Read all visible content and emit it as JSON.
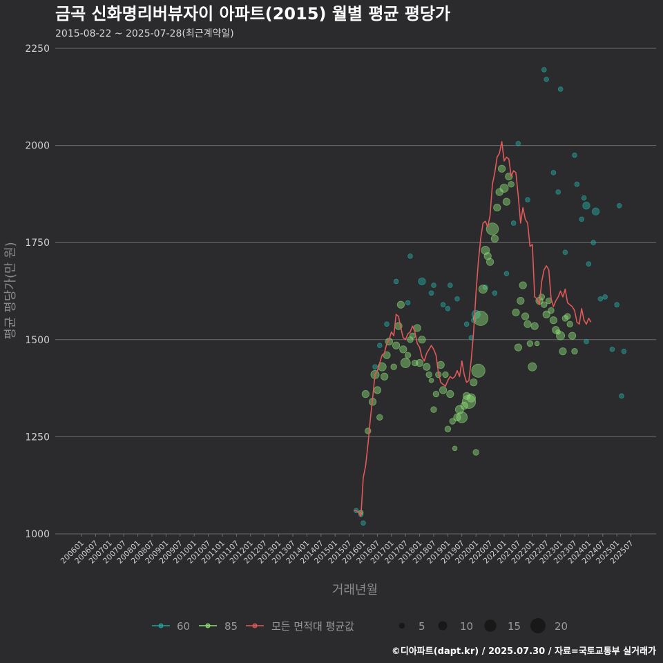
{
  "chart_data": {
    "type": "scatter",
    "title": "금곡 신화명리버뷰자이 아파트(2015) 월별 평균 평당가",
    "subtitle": "2015-08-22 ~ 2025-07-28(최근계약일)",
    "xlabel": "거래년월",
    "ylabel": "평균 평당가(만 원)",
    "ylim": [
      1000,
      2250
    ],
    "yticks": [
      1000,
      1250,
      1500,
      1750,
      2000,
      2250
    ],
    "categories": [
      "200601",
      "200607",
      "200701",
      "200707",
      "200801",
      "200807",
      "200901",
      "200907",
      "201001",
      "201007",
      "201101",
      "201107",
      "201201",
      "201207",
      "201301",
      "201307",
      "201401",
      "201407",
      "201501",
      "201507",
      "201601",
      "201607",
      "201701",
      "201707",
      "201801",
      "201807",
      "201901",
      "201907",
      "202001",
      "202007",
      "202101",
      "202107",
      "202201",
      "202207",
      "202301",
      "202307",
      "202401",
      "202407",
      "202501",
      "202507"
    ],
    "x_range_months": [
      0,
      234
    ],
    "colors": {
      "s60": "#26a39c",
      "s85": "#8fe07a",
      "avg": "#e05a5a",
      "size_legend": "#151515"
    },
    "legend": {
      "series": [
        {
          "key": "s60",
          "label": "60"
        },
        {
          "key": "s85",
          "label": "85"
        },
        {
          "key": "avg",
          "label": "모든 면적대 평균값"
        }
      ],
      "sizes": [
        {
          "value": 5,
          "label": "5"
        },
        {
          "value": 10,
          "label": "10"
        },
        {
          "value": 15,
          "label": "15"
        },
        {
          "value": 20,
          "label": "20"
        }
      ]
    },
    "series": [
      {
        "name": "60",
        "points": [
          [
            117,
            1060,
            1
          ],
          [
            119,
            1050,
            1
          ],
          [
            120,
            1028,
            1
          ],
          [
            125,
            1430,
            1
          ],
          [
            127,
            1485,
            1
          ],
          [
            130,
            1540,
            1
          ],
          [
            134,
            1650,
            1
          ],
          [
            139,
            1595,
            1
          ],
          [
            140,
            1715,
            1
          ],
          [
            145,
            1650,
            3
          ],
          [
            149,
            1620,
            1
          ],
          [
            150,
            1640,
            1
          ],
          [
            154,
            1590,
            1
          ],
          [
            156,
            1580,
            1
          ],
          [
            157,
            1640,
            1
          ],
          [
            160,
            1605,
            1
          ],
          [
            164,
            1540,
            1
          ],
          [
            166,
            1505,
            1
          ],
          [
            167,
            1550,
            1
          ],
          [
            168,
            1565,
            4
          ],
          [
            172,
            1635,
            1
          ],
          [
            176,
            1620,
            1
          ],
          [
            181,
            1670,
            1
          ],
          [
            184,
            1800,
            1
          ],
          [
            186,
            2005,
            1
          ],
          [
            190,
            1860,
            1
          ],
          [
            197,
            2195,
            1
          ],
          [
            198,
            2170,
            1
          ],
          [
            201,
            1930,
            1
          ],
          [
            203,
            1880,
            1
          ],
          [
            204,
            2145,
            1
          ],
          [
            206,
            1725,
            1
          ],
          [
            210,
            1975,
            1
          ],
          [
            211,
            1900,
            1
          ],
          [
            213,
            1810,
            1
          ],
          [
            214,
            1865,
            1
          ],
          [
            215,
            1845,
            3
          ],
          [
            216,
            1695,
            1
          ],
          [
            218,
            1750,
            1
          ],
          [
            219,
            1830,
            3
          ],
          [
            221,
            1605,
            1
          ],
          [
            223,
            1610,
            1
          ],
          [
            228,
            1590,
            1
          ],
          [
            229,
            1845,
            1
          ],
          [
            231,
            1470,
            1
          ],
          [
            230,
            1355,
            1
          ],
          [
            226,
            1475,
            1
          ],
          [
            215,
            1495,
            1
          ]
        ]
      },
      {
        "name": "85",
        "points": [
          [
            119,
            1055,
            1
          ],
          [
            121,
            1360,
            3
          ],
          [
            122,
            1265,
            2
          ],
          [
            124,
            1340,
            3
          ],
          [
            125,
            1410,
            4
          ],
          [
            126,
            1370,
            3
          ],
          [
            127,
            1300,
            2
          ],
          [
            128,
            1430,
            4
          ],
          [
            129,
            1405,
            3
          ],
          [
            130,
            1460,
            3
          ],
          [
            131,
            1495,
            3
          ],
          [
            133,
            1430,
            2
          ],
          [
            134,
            1485,
            3
          ],
          [
            135,
            1535,
            3
          ],
          [
            136,
            1590,
            3
          ],
          [
            137,
            1475,
            3
          ],
          [
            138,
            1440,
            5
          ],
          [
            139,
            1460,
            2
          ],
          [
            140,
            1500,
            2
          ],
          [
            141,
            1510,
            2
          ],
          [
            142,
            1440,
            2
          ],
          [
            143,
            1530,
            3
          ],
          [
            144,
            1440,
            3
          ],
          [
            145,
            1500,
            3
          ],
          [
            147,
            1430,
            3
          ],
          [
            148,
            1410,
            2
          ],
          [
            149,
            1395,
            1
          ],
          [
            150,
            1320,
            2
          ],
          [
            151,
            1360,
            2
          ],
          [
            152,
            1410,
            2
          ],
          [
            153,
            1435,
            3
          ],
          [
            154,
            1370,
            3
          ],
          [
            155,
            1410,
            2
          ],
          [
            156,
            1270,
            2
          ],
          [
            157,
            1360,
            3
          ],
          [
            158,
            1290,
            2
          ],
          [
            159,
            1220,
            1
          ],
          [
            160,
            1300,
            3
          ],
          [
            161,
            1320,
            4
          ],
          [
            162,
            1300,
            6
          ],
          [
            163,
            1330,
            3
          ],
          [
            164,
            1355,
            3
          ],
          [
            165,
            1340,
            8
          ],
          [
            166,
            1350,
            4
          ],
          [
            167,
            1390,
            3
          ],
          [
            168,
            1210,
            2
          ],
          [
            169,
            1420,
            8
          ],
          [
            170,
            1555,
            9
          ],
          [
            171,
            1630,
            4
          ],
          [
            172,
            1730,
            4
          ],
          [
            173,
            1715,
            3
          ],
          [
            174,
            1700,
            3
          ],
          [
            175,
            1785,
            7
          ],
          [
            176,
            1760,
            3
          ],
          [
            177,
            1840,
            3
          ],
          [
            178,
            1880,
            3
          ],
          [
            179,
            1940,
            3
          ],
          [
            180,
            1890,
            4
          ],
          [
            181,
            1855,
            3
          ],
          [
            182,
            1920,
            3
          ],
          [
            183,
            1900,
            2
          ],
          [
            185,
            1570,
            3
          ],
          [
            186,
            1480,
            3
          ],
          [
            187,
            1600,
            3
          ],
          [
            188,
            1640,
            3
          ],
          [
            189,
            1560,
            3
          ],
          [
            190,
            1540,
            3
          ],
          [
            191,
            1490,
            2
          ],
          [
            192,
            1430,
            4
          ],
          [
            193,
            1535,
            3
          ],
          [
            194,
            1490,
            1
          ],
          [
            195,
            1600,
            3
          ],
          [
            196,
            1610,
            2
          ],
          [
            197,
            1590,
            2
          ],
          [
            198,
            1565,
            3
          ],
          [
            199,
            1600,
            2
          ],
          [
            200,
            1575,
            2
          ],
          [
            201,
            1550,
            3
          ],
          [
            202,
            1525,
            3
          ],
          [
            203,
            1520,
            1
          ],
          [
            204,
            1510,
            4
          ],
          [
            205,
            1470,
            3
          ],
          [
            206,
            1555,
            2
          ],
          [
            207,
            1560,
            2
          ],
          [
            208,
            1540,
            2
          ],
          [
            209,
            1510,
            3
          ],
          [
            210,
            1470,
            2
          ]
        ]
      },
      {
        "name": "모든 면적대 평균값",
        "points": [
          [
            116,
            1060
          ],
          [
            117,
            1060
          ],
          [
            118,
            1055
          ],
          [
            119,
            1045
          ],
          [
            120,
            1145
          ],
          [
            121,
            1175
          ],
          [
            122,
            1230
          ],
          [
            123,
            1295
          ],
          [
            124,
            1350
          ],
          [
            125,
            1410
          ],
          [
            126,
            1420
          ],
          [
            127,
            1440
          ],
          [
            128,
            1460
          ],
          [
            129,
            1465
          ],
          [
            130,
            1490
          ],
          [
            131,
            1500
          ],
          [
            132,
            1520
          ],
          [
            133,
            1510
          ],
          [
            134,
            1565
          ],
          [
            135,
            1560
          ],
          [
            136,
            1530
          ],
          [
            137,
            1505
          ],
          [
            138,
            1500
          ],
          [
            139,
            1515
          ],
          [
            140,
            1520
          ],
          [
            141,
            1535
          ],
          [
            142,
            1520
          ],
          [
            143,
            1490
          ],
          [
            144,
            1480
          ],
          [
            145,
            1455
          ],
          [
            146,
            1445
          ],
          [
            147,
            1465
          ],
          [
            148,
            1475
          ],
          [
            149,
            1485
          ],
          [
            150,
            1475
          ],
          [
            151,
            1460
          ],
          [
            152,
            1415
          ],
          [
            153,
            1390
          ],
          [
            154,
            1385
          ],
          [
            155,
            1380
          ],
          [
            156,
            1395
          ],
          [
            157,
            1405
          ],
          [
            158,
            1400
          ],
          [
            159,
            1405
          ],
          [
            160,
            1420
          ],
          [
            161,
            1405
          ],
          [
            162,
            1445
          ],
          [
            163,
            1410
          ],
          [
            164,
            1390
          ],
          [
            165,
            1395
          ],
          [
            166,
            1450
          ],
          [
            167,
            1520
          ],
          [
            168,
            1620
          ],
          [
            169,
            1700
          ],
          [
            170,
            1760
          ],
          [
            171,
            1800
          ],
          [
            172,
            1805
          ],
          [
            173,
            1790
          ],
          [
            174,
            1820
          ],
          [
            175,
            1900
          ],
          [
            176,
            1930
          ],
          [
            177,
            1970
          ],
          [
            178,
            1980
          ],
          [
            179,
            2010
          ],
          [
            180,
            1960
          ],
          [
            181,
            1970
          ],
          [
            182,
            1965
          ],
          [
            183,
            1920
          ],
          [
            184,
            1935
          ],
          [
            185,
            1930
          ],
          [
            186,
            1870
          ],
          [
            187,
            1800
          ],
          [
            188,
            1840
          ],
          [
            189,
            1810
          ],
          [
            190,
            1800
          ],
          [
            191,
            1740
          ],
          [
            192,
            1745
          ],
          [
            193,
            1610
          ],
          [
            194,
            1605
          ],
          [
            195,
            1590
          ],
          [
            196,
            1650
          ],
          [
            197,
            1680
          ],
          [
            198,
            1690
          ],
          [
            199,
            1680
          ],
          [
            200,
            1605
          ],
          [
            201,
            1585
          ],
          [
            202,
            1600
          ],
          [
            203,
            1610
          ],
          [
            204,
            1625
          ],
          [
            205,
            1610
          ],
          [
            206,
            1630
          ],
          [
            207,
            1595
          ],
          [
            208,
            1590
          ],
          [
            209,
            1585
          ],
          [
            210,
            1575
          ],
          [
            211,
            1545
          ],
          [
            212,
            1540
          ],
          [
            213,
            1580
          ],
          [
            214,
            1550
          ],
          [
            215,
            1540
          ],
          [
            216,
            1555
          ],
          [
            217,
            1545
          ]
        ]
      }
    ],
    "footer": "©디아파트(dapt.kr) / 2025.07.30 / 자료=국토교통부 실거래가"
  }
}
